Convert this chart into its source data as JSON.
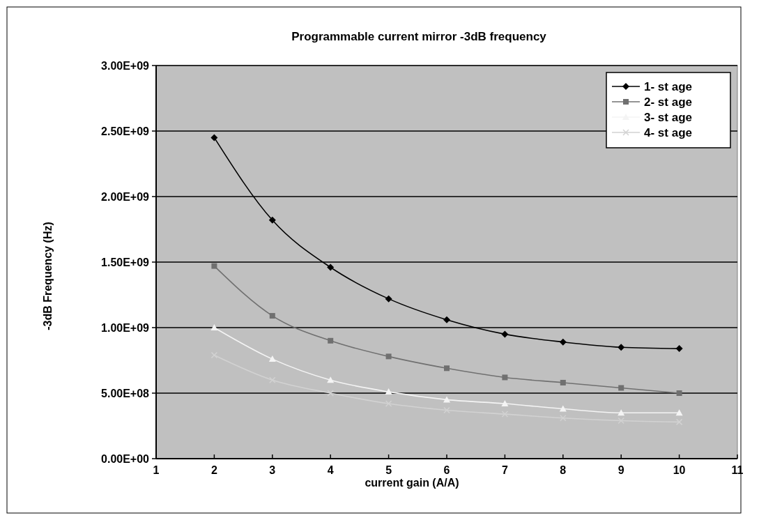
{
  "chart_data": {
    "type": "line",
    "title": "Programmable current mirror -3dB frequency",
    "xlabel": "current gain (A/A)",
    "ylabel": "-3dB Frequency (Hz)",
    "x": [
      2,
      3,
      4,
      5,
      6,
      7,
      8,
      9,
      10
    ],
    "xlim": [
      1,
      11
    ],
    "xticks": [
      1,
      2,
      3,
      4,
      5,
      6,
      7,
      8,
      9,
      10,
      11
    ],
    "ylim": [
      0,
      3000000000
    ],
    "yticks": [
      {
        "value": 0,
        "label": "0.00E+00"
      },
      {
        "value": 500000000,
        "label": "5.00E+08"
      },
      {
        "value": 1000000000,
        "label": "1.00E+09"
      },
      {
        "value": 1500000000,
        "label": "1.50E+09"
      },
      {
        "value": 2000000000,
        "label": "2.00E+09"
      },
      {
        "value": 2500000000,
        "label": "2.50E+09"
      },
      {
        "value": 3000000000,
        "label": "3.00E+09"
      }
    ],
    "grid": "y",
    "legend": "top right",
    "series": [
      {
        "name": "1- st age",
        "color": "#000000",
        "marker": "diamond",
        "values": [
          2450000000,
          1820000000,
          1460000000,
          1220000000,
          1060000000,
          950000000,
          890000000,
          850000000,
          840000000
        ]
      },
      {
        "name": "2- st age",
        "color": "#707070",
        "marker": "square",
        "values": [
          1470000000,
          1090000000,
          900000000,
          780000000,
          690000000,
          620000000,
          580000000,
          540000000,
          500000000
        ]
      },
      {
        "name": "3- st age",
        "color": "#f4f4f4",
        "marker": "triangle",
        "values": [
          1000000000,
          760000000,
          600000000,
          510000000,
          450000000,
          420000000,
          380000000,
          350000000,
          350000000
        ]
      },
      {
        "name": "4- st age",
        "color": "#d2d2d2",
        "marker": "cross",
        "values": [
          790000000,
          600000000,
          500000000,
          420000000,
          370000000,
          340000000,
          310000000,
          290000000,
          280000000
        ]
      }
    ]
  }
}
